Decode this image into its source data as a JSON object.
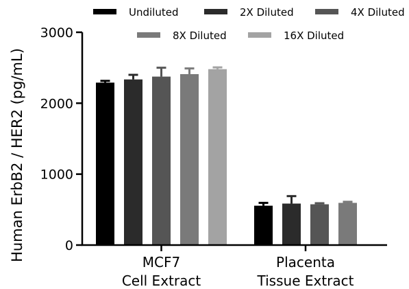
{
  "chart_data": {
    "type": "bar",
    "ylabel": "Human  ErbB2 / HER2 (pg/mL)",
    "ylim": [
      0,
      3000
    ],
    "yticks": [
      "0",
      "1000",
      "2000",
      "3000"
    ],
    "ytick_values": [
      0,
      1000,
      2000,
      3000
    ],
    "categories": [
      {
        "line1": "MCF7",
        "line2": "Cell Extract"
      },
      {
        "line1": "Placenta",
        "line2": "Tissue Extract"
      }
    ],
    "series": [
      {
        "name": "Undiluted",
        "color": "#000000",
        "values": [
          2290,
          555
        ],
        "errors": [
          25,
          40
        ]
      },
      {
        "name": "2X Diluted",
        "color": "#2b2b2b",
        "values": [
          2335,
          585
        ],
        "errors": [
          65,
          105
        ]
      },
      {
        "name": "4X Diluted",
        "color": "#555555",
        "values": [
          2375,
          575
        ],
        "errors": [
          125,
          15
        ]
      },
      {
        "name": "8X Diluted",
        "color": "#7a7a7a",
        "values": [
          2410,
          595
        ],
        "errors": [
          80,
          15
        ]
      },
      {
        "name": "16X Diluted",
        "color": "#a3a3a3",
        "values": [
          2480,
          null
        ],
        "errors": [
          25,
          null
        ]
      }
    ],
    "legend_position": "top",
    "grid": false
  }
}
